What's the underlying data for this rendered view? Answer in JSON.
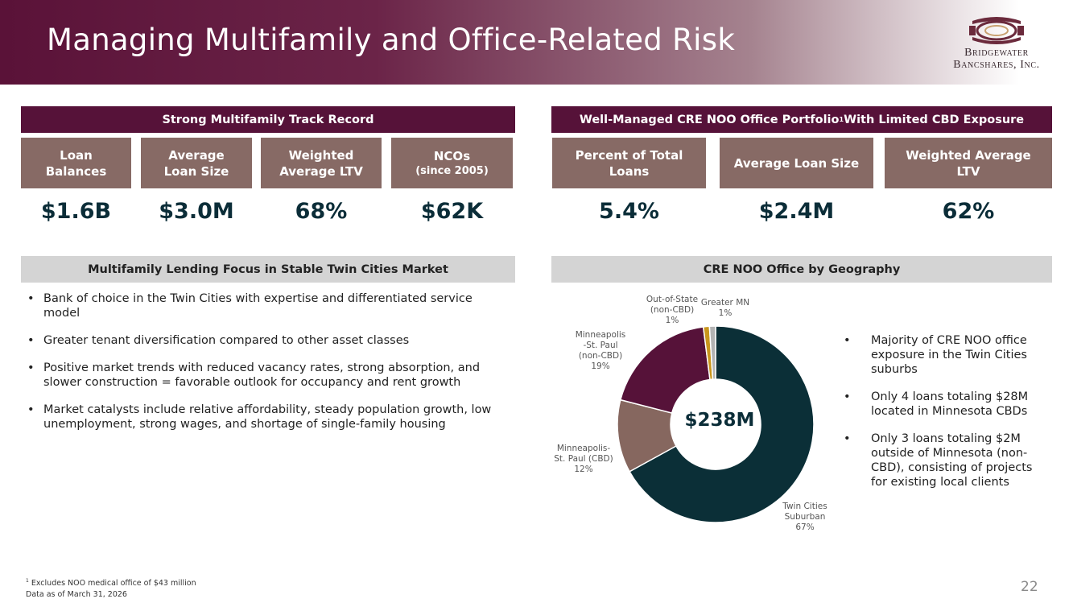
{
  "header": {
    "title": "Managing Multifamily and Office-Related Risk",
    "logo_line1": "Bridgewater",
    "logo_line2": "Bancshares, Inc."
  },
  "left": {
    "section_title": "Strong Multifamily Track Record",
    "metrics": [
      {
        "label": "Loan Balances",
        "sub": "",
        "value": "$1.6B"
      },
      {
        "label": "Average Loan Size",
        "sub": "",
        "value": "$3.0M"
      },
      {
        "label": "Weighted Average LTV",
        "sub": "",
        "value": "68%"
      },
      {
        "label": "NCOs",
        "sub": "(since 2005)",
        "value": "$62K"
      }
    ],
    "focus_title": "Multifamily Lending Focus in Stable Twin Cities Market",
    "bullets": [
      "Bank of choice in the Twin Cities with expertise and differentiated service model",
      "Greater tenant diversification compared to other asset classes",
      "Positive market trends with reduced vacancy rates, strong absorption, and slower construction = favorable outlook for occupancy and rent growth",
      "Market catalysts include relative affordability, steady population growth, low unemployment, strong wages, and shortage of single-family housing"
    ]
  },
  "right": {
    "section_title": "Well-Managed CRE NOO Office Portfolio",
    "section_title_sup": "1",
    "section_title_tail": " With Limited CBD Exposure",
    "metrics": [
      {
        "label": "Percent of Total Loans",
        "value": "5.4%"
      },
      {
        "label": "Average Loan Size",
        "value": "$2.4M"
      },
      {
        "label": "Weighted Average LTV",
        "value": "62%"
      }
    ],
    "geo_title": "CRE NOO Office by Geography",
    "donut_center": "$238M",
    "slices": [
      {
        "name": "Twin Cities Suburban",
        "pct": 67,
        "label": "67%",
        "color": "#0b2f37"
      },
      {
        "name": "Minneapolis-St. Paul (CBD)",
        "pct": 12,
        "label": "12%",
        "color": "#86675f"
      },
      {
        "name": "Minneapolis -St. Paul (non-CBD)",
        "pct": 19,
        "label": "19%",
        "color": "#561239"
      },
      {
        "name": "Out-of-State (non-CBD)",
        "pct": 1,
        "label": "1%",
        "color": "#c9961d"
      },
      {
        "name": "Greater MN",
        "pct": 1,
        "label": "1%",
        "color": "#b3b3b3"
      }
    ],
    "labels": {
      "twin_cities": [
        "Twin Cities",
        "Suburban",
        "67%"
      ],
      "msp_cbd": [
        "Minneapolis-",
        "St. Paul (CBD)",
        "12%"
      ],
      "msp_non_cbd": [
        "Minneapolis",
        "-St. Paul",
        "(non-CBD)",
        "19%"
      ],
      "out_of_state": [
        "Out-of-State",
        "(non-CBD)",
        "1%"
      ],
      "greater_mn": [
        "Greater MN",
        "1%"
      ]
    },
    "bullets": [
      "Majority of CRE NOO office exposure in the Twin Cities suburbs",
      "Only 4 loans totaling $28M located in Minnesota CBDs",
      "Only 3 loans totaling $2M outside of Minnesota (non-CBD), consisting of projects for existing local clients"
    ]
  },
  "footer": {
    "footnote_sup": "1",
    "footnote": " Excludes NOO medical office of $43 million",
    "data_as_of": "Data as of March 31, 2026",
    "page_number": "22"
  }
}
